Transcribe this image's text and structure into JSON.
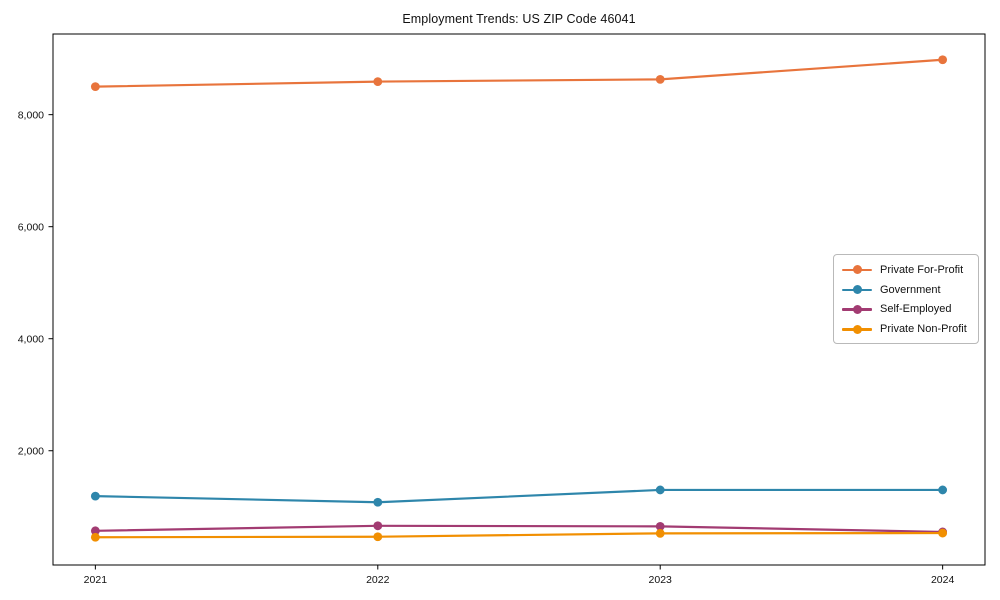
{
  "chart_data": {
    "type": "line",
    "title": "Employment Trends: US ZIP Code 46041",
    "xlabel": "",
    "ylabel": "",
    "x": [
      2021,
      2022,
      2023,
      2024
    ],
    "x_tick_labels": [
      "2021",
      "2022",
      "2023",
      "2024"
    ],
    "y_ticks": [
      2000,
      4000,
      6000,
      8000
    ],
    "y_tick_labels": [
      "2,000",
      "4,000",
      "6,000",
      "8,000"
    ],
    "xlim": [
      2020.85,
      2024.15
    ],
    "ylim": [
      -40,
      9440
    ],
    "grid": false,
    "legend_position": "center-right",
    "marker": "circle",
    "series": [
      {
        "name": "Private For-Profit",
        "color": "#E8743C",
        "values": [
          8500,
          8590,
          8630,
          8980
        ]
      },
      {
        "name": "Government",
        "color": "#2E86AB",
        "values": [
          1190,
          1080,
          1300,
          1300
        ]
      },
      {
        "name": "Self-Employed",
        "color": "#A23B72",
        "values": [
          570,
          660,
          650,
          550
        ]
      },
      {
        "name": "Private Non-Profit",
        "color": "#F18F01",
        "values": [
          455,
          465,
          525,
          530
        ]
      }
    ]
  }
}
